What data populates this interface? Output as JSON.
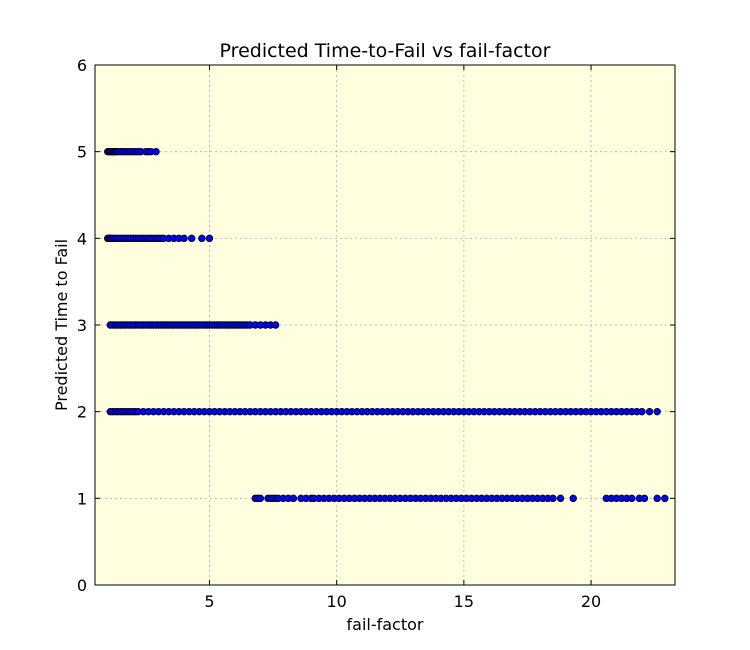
{
  "chart_data": {
    "type": "scatter",
    "title": "Predicted Time-to-Fail vs fail-factor",
    "xlabel": "fail-factor",
    "ylabel": "Predicted Time to Fail",
    "xlim": [
      0.5,
      23.3
    ],
    "ylim": [
      0,
      6
    ],
    "xticks": [
      5,
      10,
      15,
      20
    ],
    "yticks": [
      0,
      1,
      2,
      3,
      4,
      5,
      6
    ],
    "grid": true,
    "plot_background": "#ffffe0",
    "marker_color": "#0000ff",
    "series": [
      {
        "y": 5,
        "x": [
          1.0,
          1.05,
          1.1,
          1.15,
          1.2,
          1.25,
          1.3,
          1.35,
          1.4,
          1.5,
          1.6,
          1.7,
          1.8,
          1.9,
          2.0,
          2.1,
          2.2,
          2.3,
          2.5,
          2.6,
          2.7,
          2.9
        ]
      },
      {
        "y": 4,
        "x": [
          1.0,
          1.05,
          1.1,
          1.15,
          1.2,
          1.3,
          1.4,
          1.5,
          1.6,
          1.7,
          1.8,
          1.9,
          2.0,
          2.1,
          2.2,
          2.3,
          2.4,
          2.5,
          2.6,
          2.7,
          2.8,
          2.9,
          3.0,
          3.1,
          3.2,
          3.4,
          3.6,
          3.8,
          4.0,
          4.3,
          4.7,
          5.0
        ]
      },
      {
        "y": 3,
        "x": [
          1.1,
          1.2,
          1.3,
          1.4,
          1.5,
          1.6,
          1.7,
          1.8,
          1.9,
          2.0,
          2.1,
          2.2,
          2.3,
          2.4,
          2.5,
          2.6,
          2.7,
          2.8,
          2.9,
          3.0,
          3.1,
          3.2,
          3.3,
          3.4,
          3.5,
          3.6,
          3.7,
          3.8,
          3.9,
          4.0,
          4.1,
          4.2,
          4.3,
          4.4,
          4.5,
          4.6,
          4.7,
          4.8,
          4.9,
          5.0,
          5.1,
          5.2,
          5.3,
          5.4,
          5.5,
          5.6,
          5.7,
          5.8,
          5.9,
          6.0,
          6.1,
          6.2,
          6.3,
          6.4,
          6.5,
          6.6,
          6.8,
          7.0,
          7.2,
          7.4,
          7.6
        ]
      },
      {
        "y": 2,
        "x": [
          1.1,
          1.2,
          1.3,
          1.4,
          1.5,
          1.6,
          1.7,
          1.8,
          1.9,
          2.0,
          2.1,
          2.2,
          2.4,
          2.6,
          2.8,
          3.0,
          3.2,
          3.4,
          3.6,
          3.8,
          4.0,
          4.2,
          4.4,
          4.6,
          4.8,
          5.0,
          5.2,
          5.4,
          5.6,
          5.8,
          6.0,
          6.2,
          6.4,
          6.6,
          6.8,
          7.0,
          7.2,
          7.4,
          7.6,
          7.8,
          8.0,
          8.2,
          8.4,
          8.6,
          8.8,
          9.0,
          9.2,
          9.4,
          9.6,
          9.8,
          10.0,
          10.2,
          10.4,
          10.6,
          10.8,
          11.0,
          11.2,
          11.4,
          11.6,
          11.8,
          12.0,
          12.2,
          12.4,
          12.6,
          12.8,
          13.0,
          13.2,
          13.4,
          13.6,
          13.8,
          14.0,
          14.2,
          14.4,
          14.6,
          14.8,
          15.0,
          15.2,
          15.4,
          15.6,
          15.8,
          16.0,
          16.2,
          16.4,
          16.6,
          16.8,
          17.0,
          17.2,
          17.4,
          17.6,
          17.8,
          18.0,
          18.2,
          18.4,
          18.6,
          18.8,
          19.0,
          19.2,
          19.4,
          19.6,
          19.8,
          20.0,
          20.2,
          20.4,
          20.6,
          20.8,
          21.0,
          21.2,
          21.4,
          21.6,
          21.8,
          22.0,
          22.3,
          22.6
        ]
      },
      {
        "y": 1,
        "x": [
          6.8,
          6.9,
          7.0,
          7.3,
          7.4,
          7.5,
          7.6,
          7.7,
          7.9,
          8.1,
          8.3,
          8.6,
          8.8,
          9.0,
          9.1,
          9.3,
          9.5,
          9.7,
          9.9,
          10.1,
          10.3,
          10.5,
          10.7,
          10.9,
          11.1,
          11.3,
          11.5,
          11.7,
          11.9,
          12.1,
          12.3,
          12.5,
          12.7,
          12.9,
          13.1,
          13.3,
          13.5,
          13.7,
          13.9,
          14.1,
          14.3,
          14.5,
          14.7,
          14.9,
          15.1,
          15.3,
          15.5,
          15.7,
          15.9,
          16.1,
          16.3,
          16.5,
          16.7,
          16.9,
          17.1,
          17.3,
          17.5,
          17.7,
          17.9,
          18.1,
          18.3,
          18.5,
          18.8,
          19.3,
          20.6,
          20.8,
          21.0,
          21.2,
          21.4,
          21.6,
          21.9,
          22.1,
          22.6,
          22.9
        ]
      }
    ]
  }
}
